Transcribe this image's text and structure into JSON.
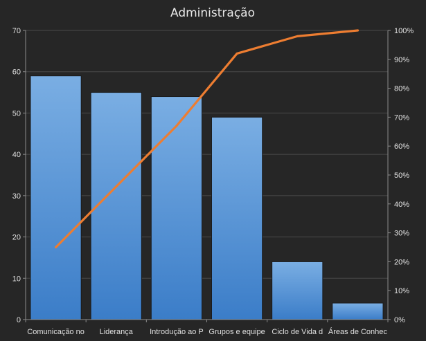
{
  "chart_data": {
    "type": "bar",
    "title": "Administração",
    "categories": [
      "Comunicação no",
      "Liderança",
      "Introdução ao P",
      "Grupos e equipe",
      "Ciclo de Vida d",
      "Áreas de Conhec"
    ],
    "series": [
      {
        "type": "bar",
        "values": [
          59,
          55,
          54,
          49,
          14,
          4
        ]
      },
      {
        "type": "line",
        "axis": "secondary",
        "values": [
          25,
          46,
          67,
          92,
          98,
          100
        ]
      }
    ],
    "ylim": [
      0,
      70
    ],
    "yticks": [
      0,
      10,
      20,
      30,
      40,
      50,
      60,
      70
    ],
    "y2lim": [
      0,
      100
    ],
    "y2ticks": [
      "0%",
      "10%",
      "20%",
      "30%",
      "40%",
      "50%",
      "60%",
      "70%",
      "80%",
      "90%",
      "100%"
    ],
    "grid": true,
    "legend": "none",
    "colors": {
      "background": "#262626",
      "bar_top": "#7aaee3",
      "bar_bottom": "#3b7dc8",
      "bar_edge": "#1a1a1a",
      "line": "#ed7d31",
      "grid": "#4a4a4a",
      "axis": "#8c8c8c",
      "text": "#e0e0e0"
    }
  }
}
